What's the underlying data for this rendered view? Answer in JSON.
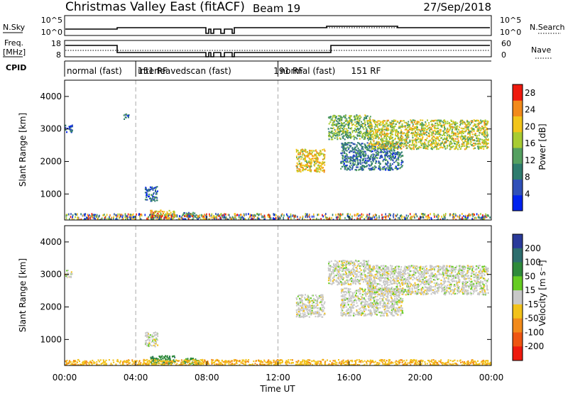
{
  "header": {
    "title": "Christmas Valley East (fitACF)",
    "beam": "Beam 19",
    "date": "27/Sep/2018"
  },
  "strip": {
    "nsky_label": "N.Sky",
    "nsearch_label": "N.Search",
    "nsky_ticks": [
      "10^5",
      "10^0"
    ],
    "freq_label": "Freq.",
    "freq_unit": "[MHz]",
    "freq_ticks": [
      "18",
      "8"
    ],
    "nave_label": "Nave",
    "nave_ticks": [
      "60",
      "0"
    ],
    "cpid_label": "CPID",
    "cpid_segments": [
      {
        "name": "normal (fast)",
        "rf": "151 RF",
        "start_h": 0,
        "end_h": 4
      },
      {
        "name": "interleavedscan (fast)",
        "rf": "191 RF",
        "start_h": 4,
        "end_h": 12
      },
      {
        "name": "normal (fast)",
        "rf": "151 RF",
        "start_h": 12,
        "end_h": 24
      }
    ]
  },
  "chart_data": [
    {
      "type": "heatmap",
      "panel": "power",
      "ylabel": "Slant Range [km]",
      "xlabel": "",
      "xlim": [
        0,
        24
      ],
      "ylim": [
        200,
        4500
      ],
      "y_ticks": [
        1000,
        2000,
        3000,
        4000
      ],
      "colorbar": {
        "label": "Power [dB]",
        "ticks": [
          4,
          8,
          12,
          16,
          20,
          24,
          28
        ],
        "range": [
          0,
          30
        ],
        "colors": [
          "#0022ee",
          "#3050b8",
          "#2e7c6e",
          "#55a060",
          "#a8cc32",
          "#f2c51a",
          "#f28a1a",
          "#ee1a0e"
        ]
      },
      "regions": [
        {
          "t0": 0.0,
          "t1": 0.4,
          "r0": 2900,
          "r1": 3150,
          "p": 8
        },
        {
          "t0": 3.3,
          "t1": 3.6,
          "r0": 3300,
          "r1": 3500,
          "p": 8
        },
        {
          "t0": 4.5,
          "t1": 5.2,
          "r0": 800,
          "r1": 1250,
          "p": 7
        },
        {
          "t0": 4.8,
          "t1": 6.2,
          "r0": 250,
          "r1": 520,
          "p": 22
        },
        {
          "t0": 6.5,
          "t1": 7.6,
          "r0": 250,
          "r1": 450,
          "p": 10
        },
        {
          "t0": 13.0,
          "t1": 14.6,
          "r0": 1700,
          "r1": 2400,
          "p": 20
        },
        {
          "t0": 14.8,
          "t1": 17.2,
          "r0": 2700,
          "r1": 3450,
          "p": 14
        },
        {
          "t0": 15.5,
          "t1": 19.0,
          "r0": 1750,
          "r1": 2600,
          "p": 9
        },
        {
          "t0": 17.0,
          "t1": 23.8,
          "r0": 2400,
          "r1": 3300,
          "p": 18
        }
      ]
    },
    {
      "type": "heatmap",
      "panel": "velocity",
      "ylabel": "Slant Range [km]",
      "xlabel": "Time UT",
      "x_ticks": [
        "00:00",
        "04:00",
        "08:00",
        "12:00",
        "16:00",
        "20:00",
        "00:00"
      ],
      "xlim": [
        0,
        24
      ],
      "ylim": [
        200,
        4500
      ],
      "y_ticks": [
        1000,
        2000,
        3000,
        4000
      ],
      "colorbar": {
        "label": "Velocity [m s⁻¹]",
        "ticks": [
          200,
          100,
          50,
          15,
          -15,
          -50,
          -100,
          -200
        ],
        "colors": [
          "#2a3a9a",
          "#2d6e6e",
          "#2e8a3a",
          "#66cc22",
          "#c8c8c8",
          "#f2c21a",
          "#f28a1a",
          "#ee5512",
          "#ee1a0e"
        ]
      },
      "regions": [
        {
          "t0": 0.0,
          "t1": 0.4,
          "r0": 2900,
          "r1": 3150,
          "v": 0
        },
        {
          "t0": 4.5,
          "t1": 5.2,
          "r0": 800,
          "r1": 1250,
          "v": 0
        },
        {
          "t0": 4.8,
          "t1": 6.2,
          "r0": 250,
          "r1": 520,
          "v": 60
        },
        {
          "t0": 6.5,
          "t1": 7.6,
          "r0": 250,
          "r1": 450,
          "v": 40
        },
        {
          "t0": 13.0,
          "t1": 14.6,
          "r0": 1700,
          "r1": 2400,
          "v": 0
        },
        {
          "t0": 14.8,
          "t1": 17.2,
          "r0": 2700,
          "r1": 3450,
          "v": 0
        },
        {
          "t0": 15.5,
          "t1": 19.0,
          "r0": 1750,
          "r1": 2600,
          "v": 0
        },
        {
          "t0": 17.0,
          "t1": 23.8,
          "r0": 2400,
          "r1": 3300,
          "v": 0
        },
        {
          "t0": 0.0,
          "t1": 24.0,
          "r0": 200,
          "r1": 400,
          "v": -40
        }
      ]
    }
  ]
}
